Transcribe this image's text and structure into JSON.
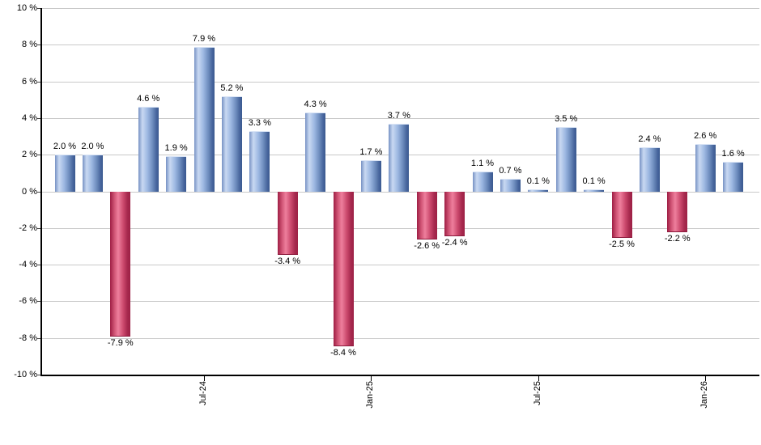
{
  "chart_data": {
    "type": "bar",
    "title": "",
    "xlabel": "",
    "ylabel": "",
    "ylim": [
      -10,
      10
    ],
    "y_step": 2,
    "grid": true,
    "legend": "none",
    "values": [
      2.0,
      2.0,
      -7.9,
      4.6,
      1.9,
      7.9,
      5.2,
      3.3,
      -3.4,
      4.3,
      -8.4,
      1.7,
      3.7,
      -2.6,
      -2.4,
      1.1,
      0.7,
      0.1,
      3.5,
      0.1,
      -2.5,
      2.4,
      -2.2,
      2.6,
      1.6
    ],
    "bar_labels": [
      "2.0 %",
      "2.0 %",
      "-7.9 %",
      "4.6 %",
      "1.9 %",
      "7.9 %",
      "5.2 %",
      "3.3 %",
      "-3.4 %",
      "4.3 %",
      "-8.4 %",
      "1.7 %",
      "3.7 %",
      "-2.6 %",
      "-2.4 %",
      "1.1 %",
      "0.7 %",
      "0.1 %",
      "3.5 %",
      "0.1 %",
      "-2.5 %",
      "2.4 %",
      "-2.2 %",
      "2.6 %",
      "1.6 %"
    ],
    "x_ticks": [
      {
        "label": "Jul-24",
        "bar_index": 5
      },
      {
        "label": "Jan-25",
        "bar_index": 11
      },
      {
        "label": "Jul-25",
        "bar_index": 17
      },
      {
        "label": "Jan-26",
        "bar_index": 23
      }
    ],
    "y_ticks": [
      {
        "label": "10 %",
        "value": 10
      },
      {
        "label": "8 %",
        "value": 8
      },
      {
        "label": "6 %",
        "value": 6
      },
      {
        "label": "4 %",
        "value": 4
      },
      {
        "label": "2 %",
        "value": 2
      },
      {
        "label": "0 %",
        "value": 0
      },
      {
        "label": "-2 %",
        "value": -2
      },
      {
        "label": "-4 %",
        "value": -4
      },
      {
        "label": "-6 %",
        "value": -6
      },
      {
        "label": "-8 %",
        "value": -8
      },
      {
        "label": "-10 %",
        "value": -10
      }
    ],
    "positive_color": "#8FADD9",
    "negative_color": "#C23A62",
    "gridline_color": "#C9C9C9",
    "axis_color": "#000000",
    "text_color": "#000000",
    "background_color": "#FFFFFF"
  }
}
